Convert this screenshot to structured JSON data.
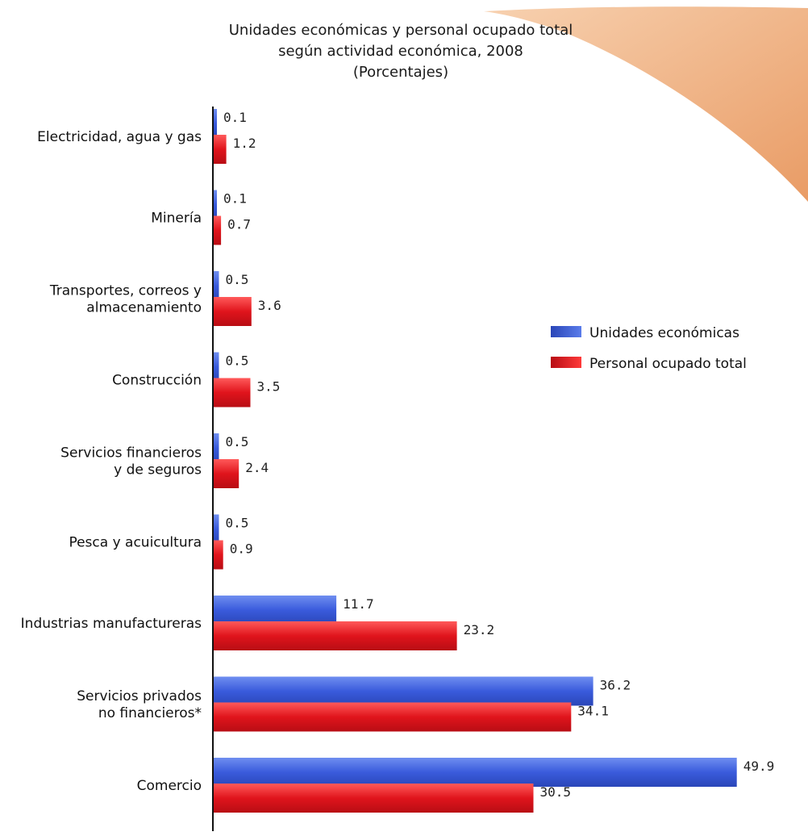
{
  "chart_data": {
    "type": "bar",
    "orientation": "horizontal",
    "title": [
      "Unidades económicas y personal ocupado total",
      "según actividad económica, 2008",
      "(Porcentajes)"
    ],
    "categories": [
      [
        "Electricidad, agua y gas"
      ],
      [
        "Minería"
      ],
      [
        "Transportes, correos y",
        "almacenamiento"
      ],
      [
        "Construcción"
      ],
      [
        "Servicios financieros",
        "y de seguros"
      ],
      [
        "Pesca y acuicultura"
      ],
      [
        "Industrias manufactureras"
      ],
      [
        "Servicios privados",
        "no financieros*"
      ],
      [
        "Comercio"
      ]
    ],
    "series": [
      {
        "name": "Unidades económicas",
        "color": "#3a5bdc",
        "values": [
          0.1,
          0.1,
          0.5,
          0.5,
          0.5,
          0.5,
          11.7,
          36.2,
          49.9
        ],
        "labels": [
          "0.1",
          "0.1",
          "0.5",
          "0.5",
          "0.5",
          "0.5",
          "11.7",
          "36.2",
          "49.9"
        ]
      },
      {
        "name": "Personal ocupado total",
        "color": "#e0141c",
        "values": [
          1.2,
          0.7,
          3.6,
          3.5,
          2.4,
          0.9,
          23.2,
          34.1,
          30.5
        ],
        "labels": [
          "1.2",
          "0.7",
          "3.6",
          "3.5",
          "2.4",
          "0.9",
          "23.2",
          "34.1",
          "30.5"
        ]
      }
    ],
    "xlim": [
      0,
      50
    ],
    "axis": "none",
    "grid": false,
    "legend_position": "right"
  }
}
